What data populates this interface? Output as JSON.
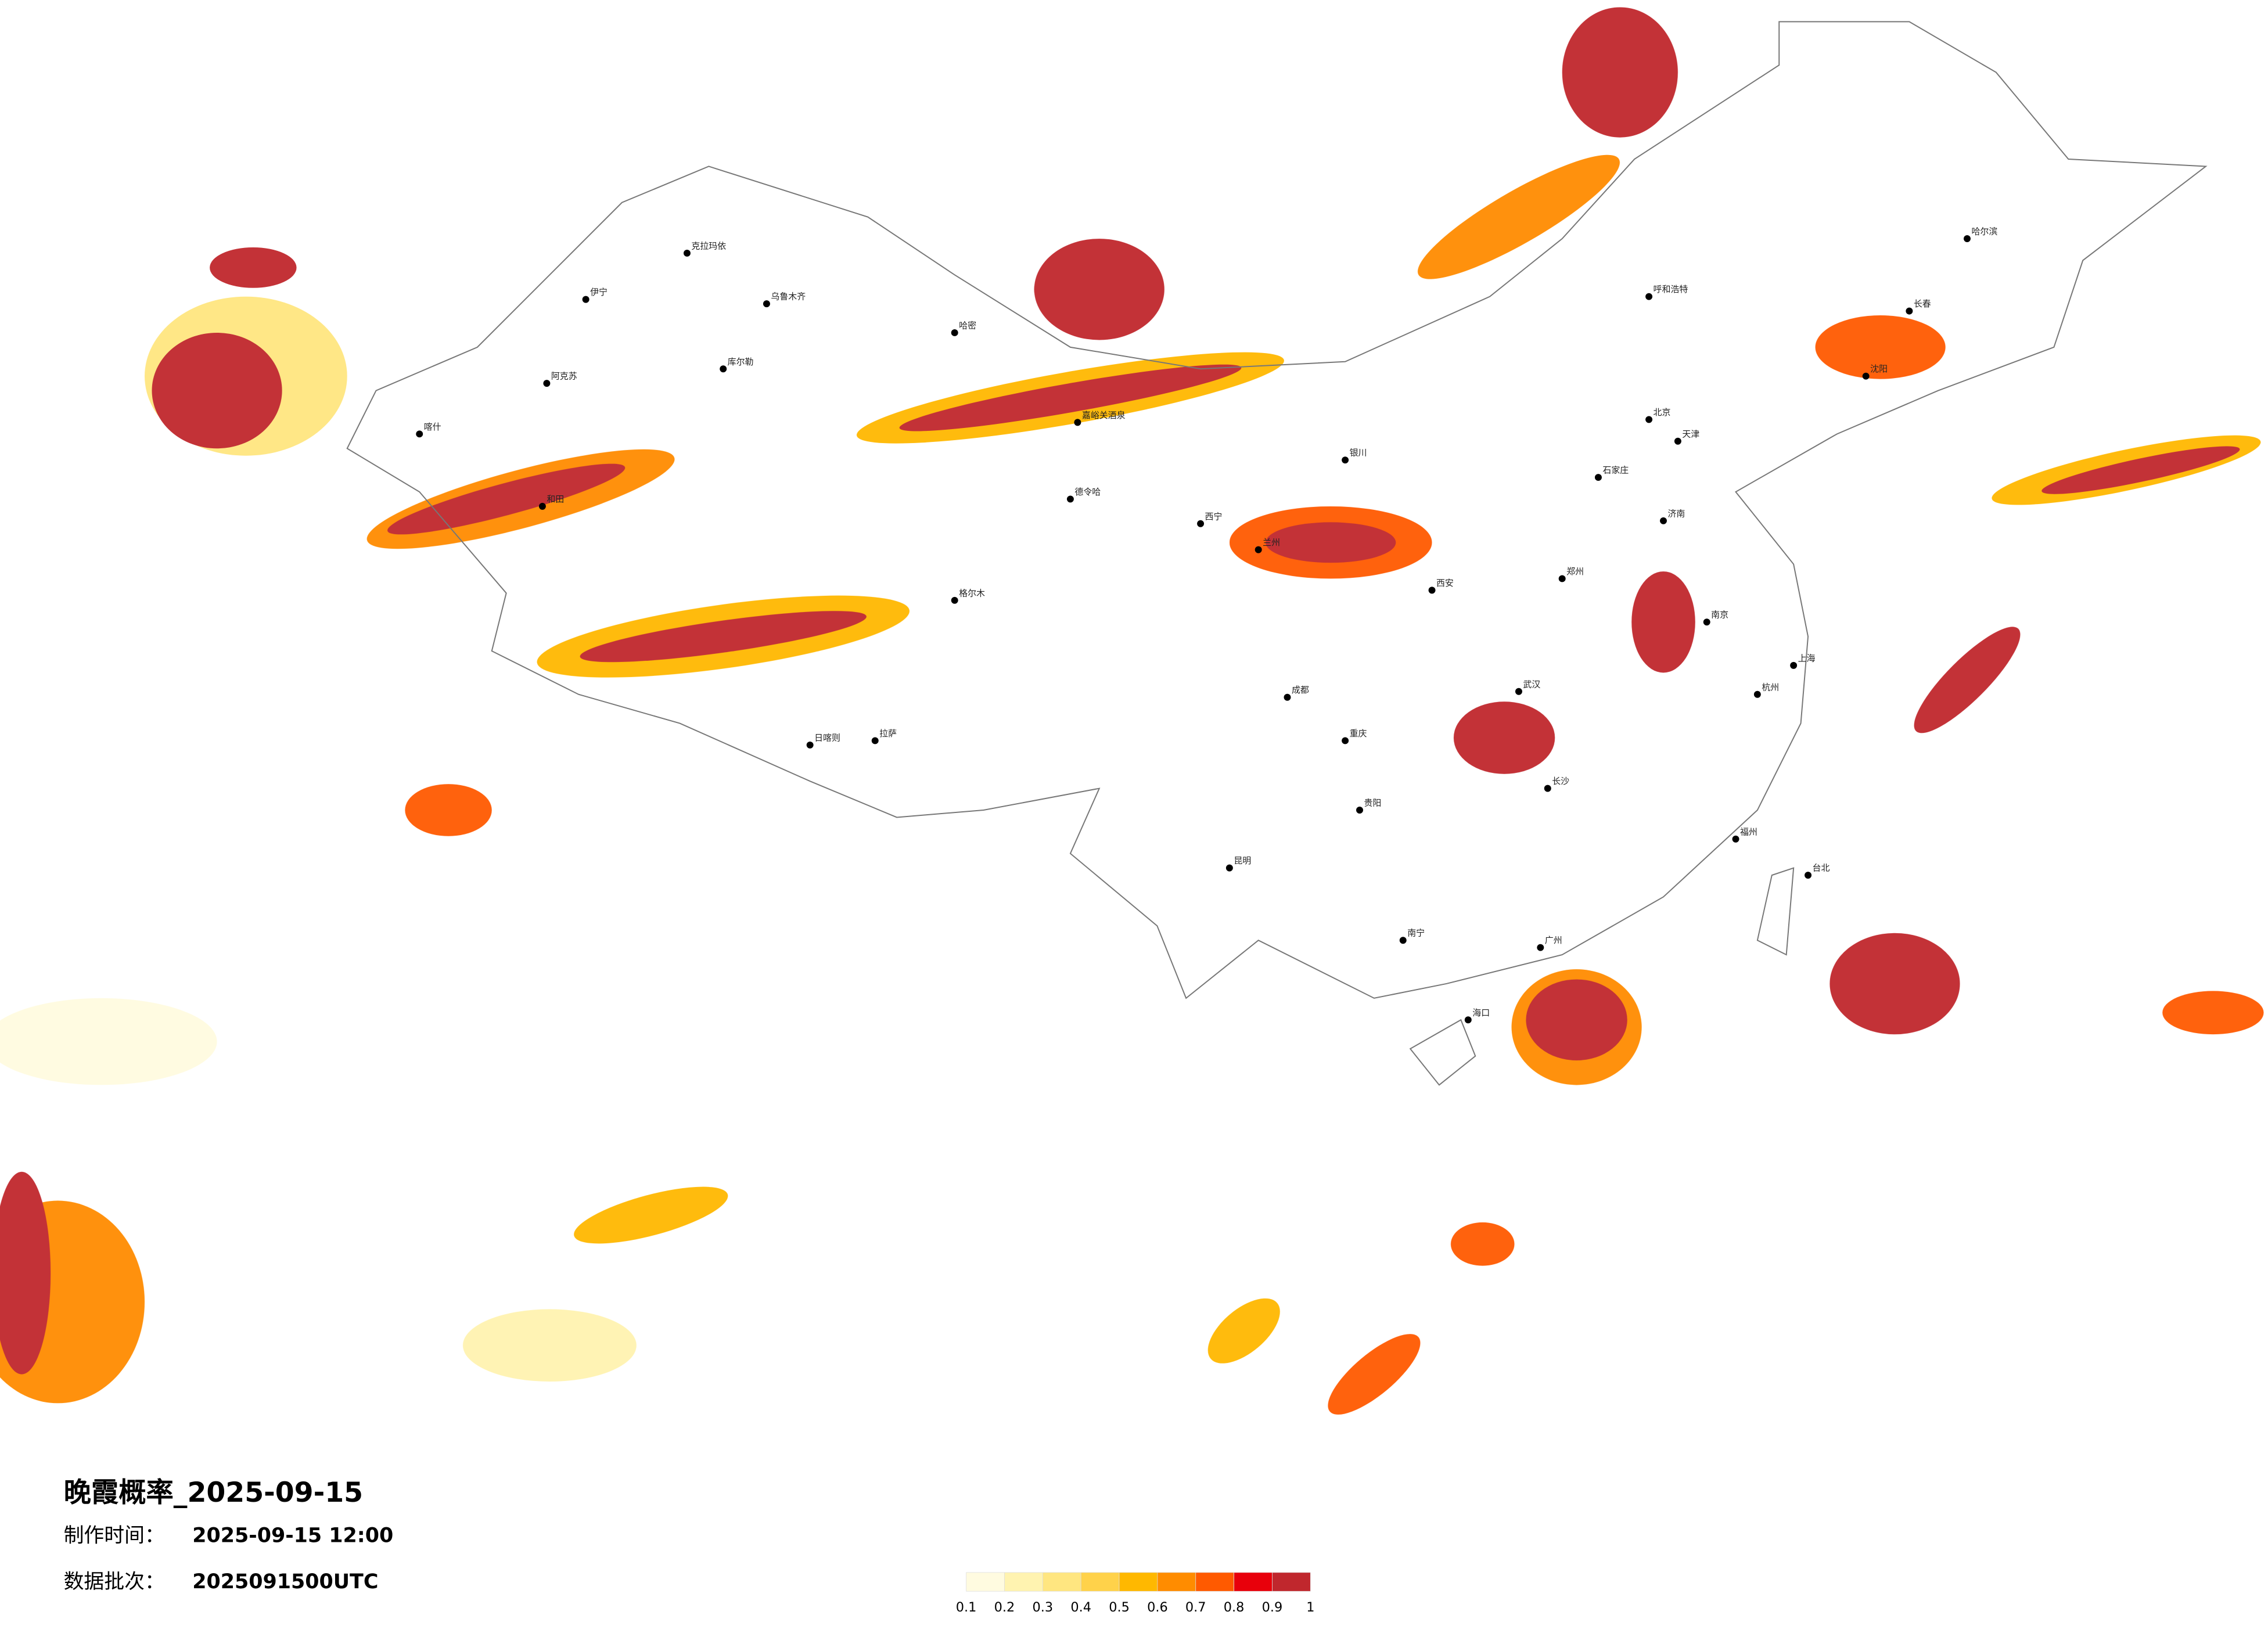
{
  "title": "晚霞概率_2025-09-15",
  "made_time": {
    "label": "制作时间：",
    "value": "2025-09-15 12:00"
  },
  "batch": {
    "label": "数据批次：",
    "value": "2025091500UTC"
  },
  "legend": {
    "ticks": [
      0.1,
      0.2,
      0.3,
      0.4,
      0.5,
      0.6,
      0.7,
      0.8,
      0.9,
      1
    ],
    "colors": [
      "#fffbe0",
      "#fff3b0",
      "#ffe680",
      "#ffd24a",
      "#ffb800",
      "#ff8c00",
      "#ff5a00",
      "#e8000b",
      "#c0272d"
    ]
  },
  "cities": [
    "克拉玛依",
    "伊宁",
    "乌鲁木齐",
    "哈密",
    "库尔勒",
    "阿克苏",
    "喀什",
    "和田",
    "嘉峪关酒泉",
    "德令哈",
    "格尔木",
    "西宁",
    "兰州",
    "银川",
    "呼和浩特",
    "北京",
    "天津",
    "石家庄",
    "济南",
    "郑州",
    "西安",
    "成都",
    "重庆",
    "武汉",
    "长沙",
    "南京",
    "上海",
    "杭州",
    "福州",
    "广州",
    "南宁",
    "昆明",
    "贵阳",
    "拉萨",
    "日喀则",
    "哈尔滨",
    "长春",
    "沈阳",
    "台北",
    "海口"
  ]
}
